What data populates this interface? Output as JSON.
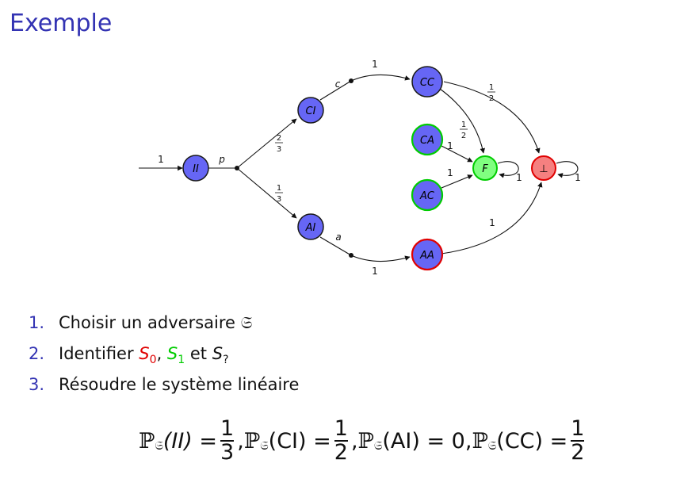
{
  "title": "Exemple",
  "graph": {
    "nodes": {
      "II": "II",
      "CI": "CI",
      "AI": "AI",
      "CC": "CC",
      "CA": "CA",
      "AC": "AC",
      "AA": "AA",
      "F": "F",
      "bot": "⊥"
    },
    "edge_labels": {
      "input": "1",
      "p": "p",
      "c": "c",
      "a": "a",
      "ci_to_cc": "1",
      "ai_to_aa": "1",
      "ca_f": "1",
      "ac_f": "1",
      "aa_bot": "1",
      "f_loop": "1",
      "bot_loop": "1"
    },
    "fractions": {
      "two_thirds": {
        "num": "2",
        "den": "3"
      },
      "one_third": {
        "num": "1",
        "den": "3"
      },
      "cc_bot": {
        "num": "1",
        "den": "2"
      },
      "cc_f": {
        "num": "1",
        "den": "2"
      }
    },
    "colors": {
      "blue_fill": "#6666f5",
      "green_fill": "#80ff80",
      "red_fill": "#f58080",
      "green_border": "#00cc00",
      "red_border": "#e00000",
      "dark_border": "#1a1a1a"
    }
  },
  "list": [
    {
      "num": "1.",
      "text": "Choisir un adversaire",
      "symbol": "𝔖"
    },
    {
      "num": "2.",
      "text_a": "Identifier",
      "s0": "S",
      "s0_sub": "0",
      "s1": "S",
      "s1_sub": "1",
      "et": "et",
      "sq": "S",
      "sq_sub": "?"
    },
    {
      "num": "3.",
      "text": "Résoudre le système linéaire"
    }
  ],
  "formula": {
    "P": "ℙ",
    "G": "𝔖",
    "t1": "(II) =",
    "f1": {
      "num": "1",
      "den": "3"
    },
    "t2": "(CI) =",
    "f2": {
      "num": "1",
      "den": "2"
    },
    "t3": "(AI) = 0,",
    "t4": "(CC) =",
    "f4": {
      "num": "1",
      "den": "2"
    },
    "comma": ","
  }
}
